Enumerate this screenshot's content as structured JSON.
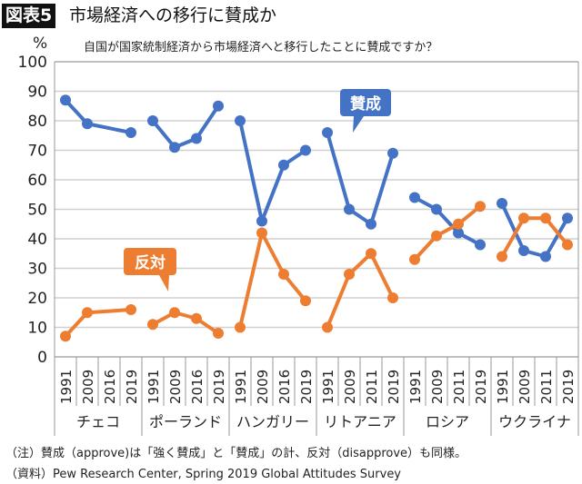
{
  "header": {
    "badge": "図表5",
    "title": "市場経済への移行に賛成か"
  },
  "chart_data": {
    "type": "line",
    "title": "自国が国家統制経済から市場経済へと移行したことに賛成ですか？",
    "ylabel": "%",
    "ylim": [
      0,
      100
    ],
    "yticks": [
      0,
      10,
      20,
      30,
      40,
      50,
      60,
      70,
      80,
      90,
      100
    ],
    "grid": true,
    "groups": [
      {
        "country": "チェコ",
        "years": [
          "1991",
          "2009",
          "2016",
          "2019"
        ]
      },
      {
        "country": "ポーランド",
        "years": [
          "1991",
          "2009",
          "2016",
          "2019"
        ]
      },
      {
        "country": "ハンガリー",
        "years": [
          "1991",
          "2009",
          "2016",
          "2019"
        ]
      },
      {
        "country": "リトアニア",
        "years": [
          "1991",
          "2009",
          "2011",
          "2019"
        ]
      },
      {
        "country": "ロシア",
        "years": [
          "1991",
          "2009",
          "2011",
          "2019"
        ]
      },
      {
        "country": "ウクライナ",
        "years": [
          "1991",
          "2009",
          "2011",
          "2019"
        ]
      }
    ],
    "series": [
      {
        "name": "賛成",
        "color": "#4472c4",
        "values": [
          [
            87,
            79,
            null,
            76
          ],
          [
            80,
            71,
            74,
            85
          ],
          [
            80,
            46,
            65,
            70
          ],
          [
            76,
            50,
            45,
            69
          ],
          [
            54,
            50,
            42,
            38
          ],
          [
            52,
            36,
            34,
            47
          ]
        ]
      },
      {
        "name": "反対",
        "color": "#ed7d31",
        "values": [
          [
            7,
            15,
            null,
            16
          ],
          [
            11,
            15,
            13,
            8
          ],
          [
            10,
            42,
            28,
            19
          ],
          [
            10,
            28,
            35,
            20
          ],
          [
            33,
            41,
            45,
            51
          ],
          [
            34,
            47,
            47,
            38
          ]
        ]
      }
    ]
  },
  "notes": {
    "note": "（注）賛成（approve)は「強く賛成」と「賛成」の計、反対（disapprove）も同様。",
    "source": "（資料）Pew Research Center, Spring 2019 Global Attitudes Survey"
  }
}
